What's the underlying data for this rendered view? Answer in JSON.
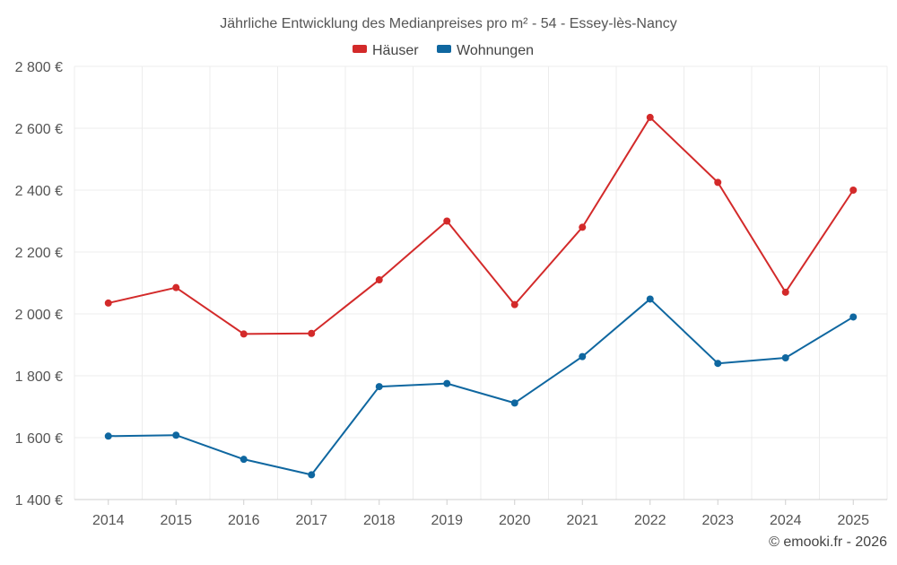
{
  "chart_data": {
    "type": "line",
    "title": "Jährliche Entwicklung des Medianpreises pro m² - 54 - Essey-lès-Nancy",
    "categories": [
      "2014",
      "2015",
      "2016",
      "2017",
      "2018",
      "2019",
      "2020",
      "2021",
      "2022",
      "2023",
      "2024",
      "2025"
    ],
    "series": [
      {
        "name": "Häuser",
        "color": "#d32a2a",
        "values": [
          2035,
          2085,
          1935,
          1937,
          2110,
          2300,
          2030,
          2280,
          2635,
          2425,
          2070,
          2400
        ]
      },
      {
        "name": "Wohnungen",
        "color": "#0f67a0",
        "values": [
          1605,
          1608,
          1530,
          1480,
          1765,
          1775,
          1712,
          1862,
          2048,
          1840,
          1858,
          1990
        ]
      }
    ],
    "ylim": [
      1400,
      2800
    ],
    "yticks": [
      1400,
      1600,
      1800,
      2000,
      2200,
      2400,
      2600,
      2800
    ],
    "ytick_labels": [
      "1 400 €",
      "1 600 €",
      "1 800 €",
      "2 000 €",
      "2 200 €",
      "2 400 €",
      "2 600 €",
      "2 800 €"
    ],
    "xlabel": "",
    "ylabel": "",
    "grid": true,
    "legend_position": "top-center"
  },
  "credit": "© emooki.fr - 2026"
}
